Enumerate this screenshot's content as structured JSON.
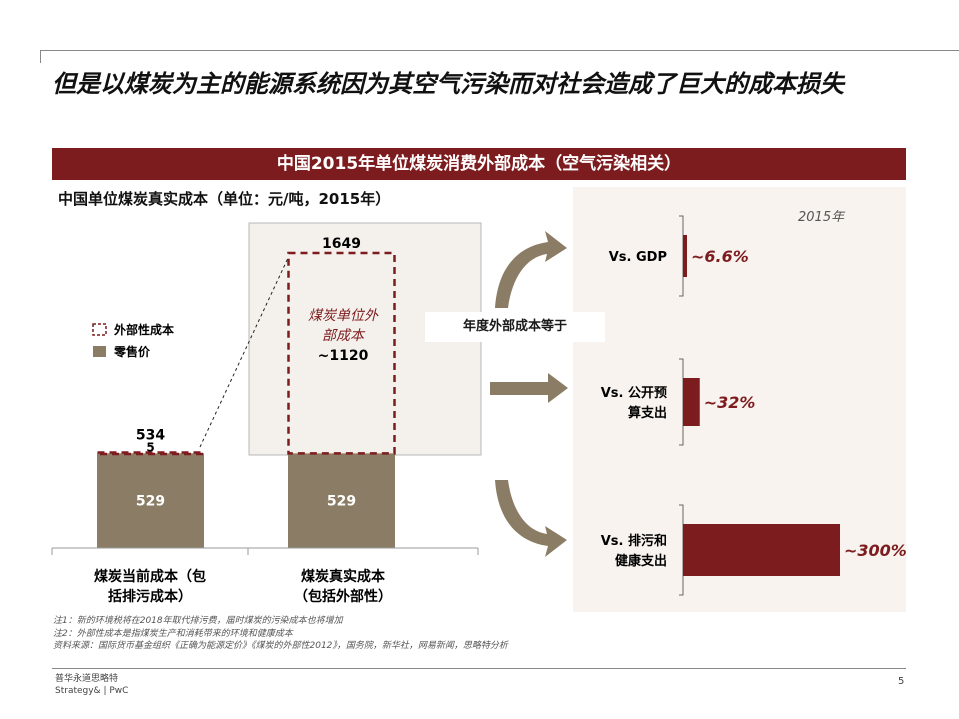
{
  "title": "但是以煤炭为主的能源系统因为其空气污染而对社会造成了巨大的成本损失",
  "banner": "中国2015年单位煤炭消费外部成本（空气污染相关）",
  "left_chart": {
    "subtitle": "中国单位煤炭真实成本（单位：元/吨，2015年）",
    "legend": [
      {
        "label": "外部性成本",
        "style": "dashed",
        "color": "#7d1c1e"
      },
      {
        "label": "零售价",
        "style": "solid",
        "color": "#8b7d65"
      }
    ],
    "inner_label_line1": "煤炭单位外",
    "inner_label_line2": "部成本",
    "inner_value": "~1120"
  },
  "callout": "年度外部成本等于",
  "right_year": "2015年",
  "chart_data": [
    {
      "type": "bar",
      "subtitle": "中国单位煤炭真实成本（单位：元/吨，2015年）",
      "categories": [
        "煤炭当前成本（包括排污成本）",
        "煤炭真实成本（包括外部性）"
      ],
      "category_lines": [
        [
          "煤炭当前成本（包",
          "括排污成本）"
        ],
        [
          "煤炭真实成本",
          "（包括外部性）"
        ]
      ],
      "series": [
        {
          "name": "零售价",
          "values": [
            529,
            529
          ]
        },
        {
          "name": "外部性成本",
          "values": [
            5,
            1120
          ]
        }
      ],
      "totals": [
        534,
        1649
      ],
      "segment_labels": [
        [
          "529",
          "5"
        ],
        [
          "529",
          "~1120"
        ]
      ],
      "ylim": [
        0,
        1700
      ]
    },
    {
      "type": "bar",
      "orientation": "horizontal",
      "year": "2015年",
      "categories": [
        "Vs. GDP",
        "Vs. 公开预算支出",
        "Vs. 排污和健康支出"
      ],
      "category_lines": [
        [
          "Vs. GDP"
        ],
        [
          "Vs. 公开预",
          "算支出"
        ],
        [
          "Vs. 排污和",
          "健康支出"
        ]
      ],
      "values": [
        6.6,
        32,
        300
      ],
      "value_labels": [
        "~6.6%",
        "~32%",
        "~300%"
      ],
      "unit": "%"
    }
  ],
  "notes": [
    "注1：新的环境税将在2018年取代排污费，届时煤炭的污染成本也将增加",
    "注2：外部性成本是指煤炭生产和消耗带来的环境和健康成本",
    "资料来源：国际货币基金组织《正确为能源定价》《煤炭的外部性2012》，国务院，新华社，网易新闻，思略特分析"
  ],
  "footer": {
    "line1": "普华永道思略特",
    "line2": "Strategy& | PwC",
    "page": "5"
  },
  "colors": {
    "accent": "#7d1c1e",
    "retail": "#8b7d65",
    "arrow": "#8b7d65",
    "panel": "#f8f3ee"
  }
}
